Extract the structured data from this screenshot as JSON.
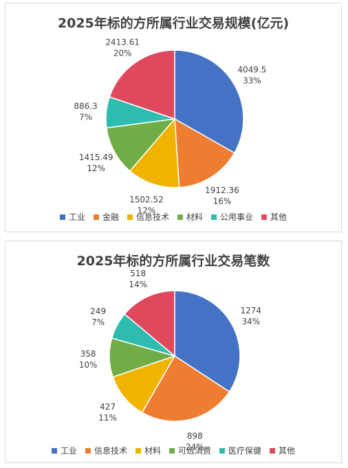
{
  "chart_data": [
    {
      "type": "pie",
      "title": "2025年标的方所属行业交易规模(亿元)",
      "categories": [
        "工业",
        "金融",
        "信息技术",
        "材料",
        "公用事业",
        "其他"
      ],
      "values": [
        4049.5,
        1912.36,
        1502.52,
        1415.49,
        886.3,
        2413.61
      ],
      "value_labels": [
        "4049.5",
        "1912.36",
        "1502.52",
        "1415.49",
        "886.3",
        "2413.61"
      ],
      "percent_labels": [
        "33%",
        "16%",
        "12%",
        "12%",
        "7%",
        "20%"
      ],
      "colors": [
        "#4472c4",
        "#ed7d31",
        "#f0b400",
        "#70ad47",
        "#2fbcb0",
        "#e0485e"
      ],
      "legend_position": "bottom"
    },
    {
      "type": "pie",
      "title": "2025年标的方所属行业交易笔数",
      "categories": [
        "工业",
        "信息技术",
        "材料",
        "可选消费",
        "医疗保健",
        "其他"
      ],
      "values": [
        1274,
        898,
        427,
        358,
        249,
        518
      ],
      "value_labels": [
        "1274",
        "898",
        "427",
        "358",
        "249",
        "518"
      ],
      "percent_labels": [
        "34%",
        "24%",
        "11%",
        "10%",
        "7%",
        "14%"
      ],
      "colors": [
        "#4472c4",
        "#ed7d31",
        "#f0b400",
        "#70ad47",
        "#2fbcb0",
        "#e0485e"
      ],
      "legend_position": "bottom"
    }
  ]
}
